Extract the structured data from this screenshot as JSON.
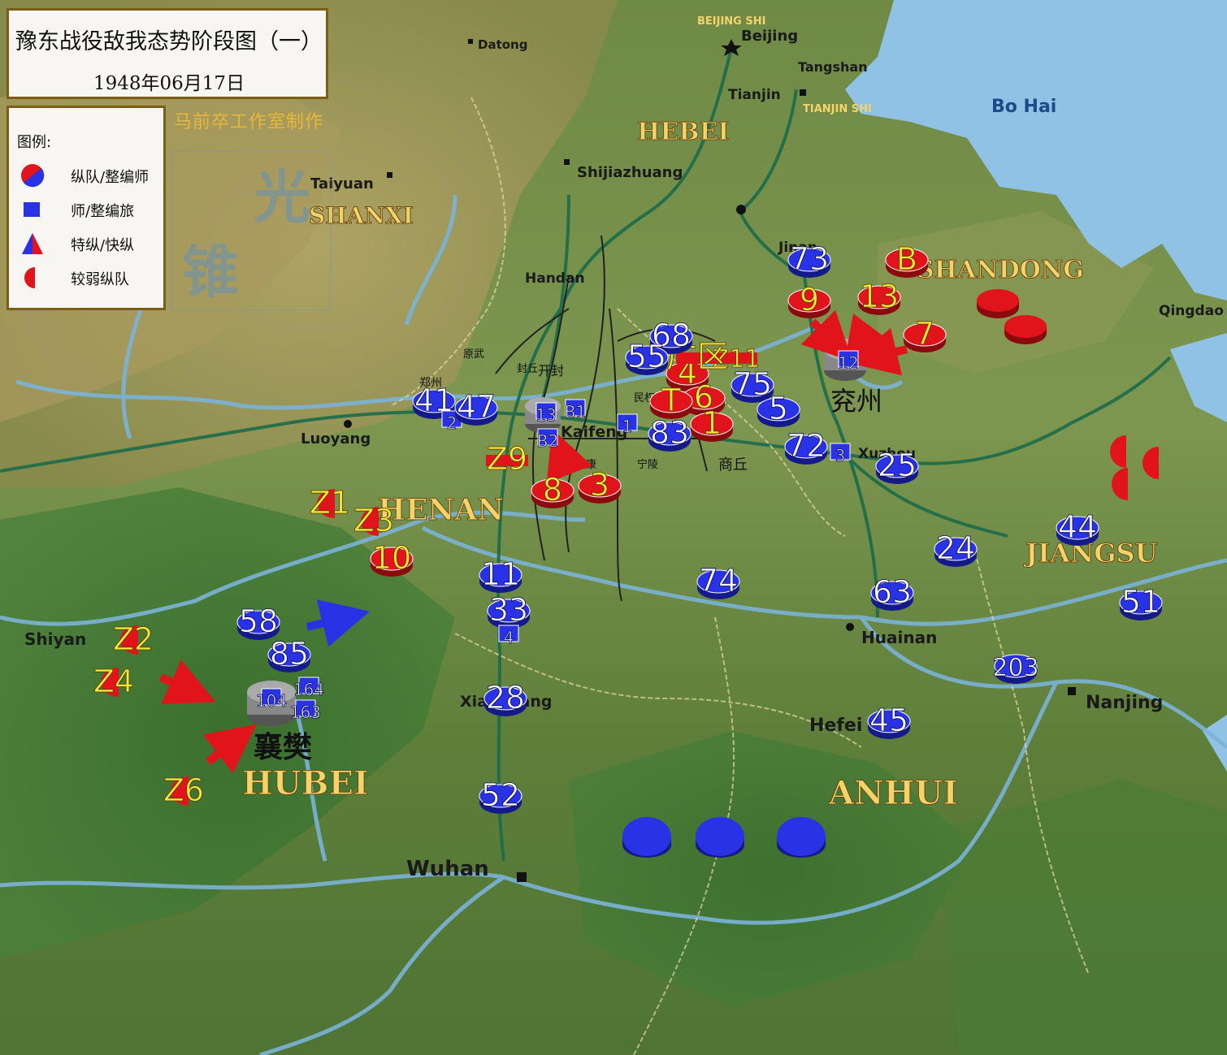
{
  "title": "豫东战役敌我态势阶段图（一）",
  "date": "1948年06月17日",
  "credit": "马前卒工作室制作",
  "watermark_text": [
    "光",
    "锥"
  ],
  "legend": {
    "title": "图例:",
    "items": [
      {
        "label": "纵队/整编师",
        "icon": "column-corps-icon"
      },
      {
        "label": "师/整编旅",
        "icon": "division-brigade-icon"
      },
      {
        "label": "特纵/快纵",
        "icon": "special-column-icon"
      },
      {
        "label": "较弱纵队",
        "icon": "weak-column-icon"
      }
    ]
  },
  "colors": {
    "red": "#e0141a",
    "blue": "#2a32e6",
    "yellow_label": "#f4e93a",
    "river": "#7bb3d8",
    "sea": "#8fc2e4"
  },
  "regions": [
    "HEBEI",
    "SHANXI",
    "HENAN",
    "SHANDONG",
    "JIANGSU",
    "ANHUI",
    "HUBEI",
    "Bo Hai",
    "BEIJING SHI",
    "TIANJIN SHI"
  ],
  "cities": [
    "Beijing",
    "Datong",
    "Tangshan",
    "Tianjin",
    "Shijiazhuang",
    "Taiyuan",
    "Handan",
    "Jinan",
    "Qingdao",
    "Luoyang",
    "Kaifeng",
    "Xuzhou",
    "Huainan",
    "Nanjing",
    "Hefei",
    "Xiangyang",
    "Wuhan",
    "Shiyan"
  ],
  "chinese_places": [
    "兖州",
    "襄樊",
    "开封",
    "商丘",
    "郑州",
    "宁陵",
    "民权",
    "太康",
    "封丘",
    "原武",
    "睢县",
    "杞县"
  ],
  "red_units": [
    {
      "label": "B"
    },
    {
      "label": "9"
    },
    {
      "label": "13"
    },
    {
      "label": "7"
    },
    {
      "label": "4"
    },
    {
      "label": "6"
    },
    {
      "label": "1"
    },
    {
      "label": "T"
    },
    {
      "label": "Z11"
    },
    {
      "label": "广区"
    },
    {
      "label": "Z9"
    },
    {
      "label": "8"
    },
    {
      "label": "3"
    },
    {
      "label": "Z1"
    },
    {
      "label": "Z3"
    },
    {
      "label": "10"
    },
    {
      "label": "Z2"
    },
    {
      "label": "Z4"
    },
    {
      "label": "Z6"
    }
  ],
  "blue_units": [
    {
      "label": "73"
    },
    {
      "label": "12"
    },
    {
      "label": "68"
    },
    {
      "label": "55"
    },
    {
      "label": "75"
    },
    {
      "label": "5"
    },
    {
      "label": "83"
    },
    {
      "label": "72"
    },
    {
      "label": "3"
    },
    {
      "label": "25"
    },
    {
      "label": "41"
    },
    {
      "label": "2"
    },
    {
      "label": "47"
    },
    {
      "label": "13"
    },
    {
      "label": "B1"
    },
    {
      "label": "B2"
    },
    {
      "label": "1"
    },
    {
      "label": "11"
    },
    {
      "label": "33"
    },
    {
      "label": "4"
    },
    {
      "label": "58"
    },
    {
      "label": "85"
    },
    {
      "label": "104"
    },
    {
      "label": "164"
    },
    {
      "label": "163"
    },
    {
      "label": "28"
    },
    {
      "label": "52"
    },
    {
      "label": "74"
    },
    {
      "label": "63"
    },
    {
      "label": "24"
    },
    {
      "label": "44"
    },
    {
      "label": "51"
    },
    {
      "label": "203"
    },
    {
      "label": "45"
    }
  ]
}
